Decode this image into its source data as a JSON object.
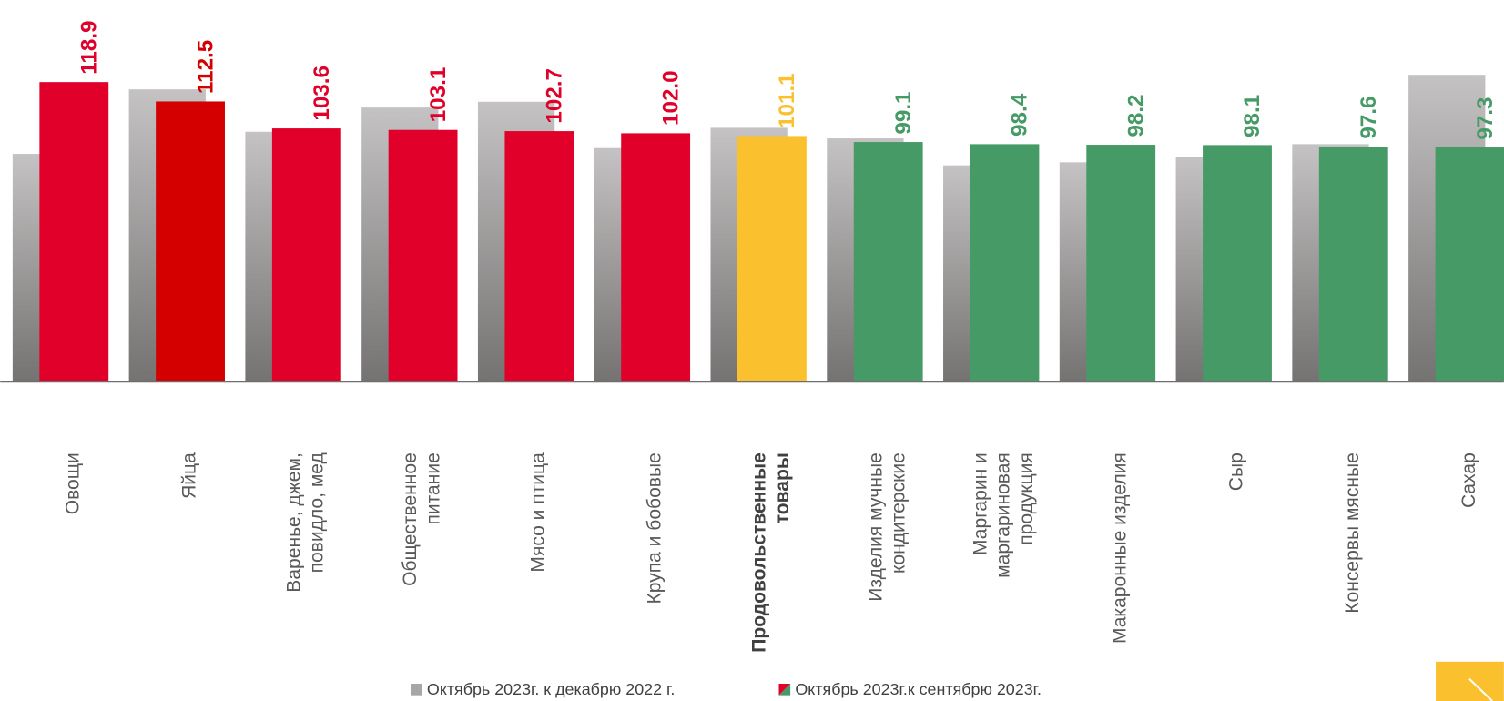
{
  "chart_data": {
    "type": "bar",
    "categories": [
      "Овощи",
      "Яйца",
      "Варенье, джем, повидло, мед",
      "Общественное питание",
      "Мясо и птица",
      "Крупа и бобовые",
      "Продовольственные товары",
      "Изделия мучные кондитерские",
      "Маргарин и маргариновая продукция",
      "Макаронные изделия",
      "Сыр",
      "Консервы мясные",
      "Сахар"
    ],
    "bold_category": 6,
    "series": [
      {
        "name": "Октябрь 2023г. к декабрю 2022 г.",
        "color": "#a6a6a6",
        "values": [
          95.2,
          116.5,
          102.5,
          110.5,
          112.4,
          97.1,
          103.8,
          100.3,
          91.4,
          92.4,
          94.3,
          98.4,
          121.3
        ]
      },
      {
        "name": "Октябрь 2023г.к сентябрю 2023г.",
        "colors": [
          "#e0002a",
          "#d40000",
          "#e0002a",
          "#e0002a",
          "#e0002a",
          "#e0002a",
          "#fbc02d",
          "#459a66",
          "#459a66",
          "#459a66",
          "#459a66",
          "#459a66",
          "#459a66"
        ],
        "values": [
          118.9,
          112.5,
          103.6,
          103.1,
          102.7,
          102.0,
          101.1,
          99.1,
          98.4,
          98.2,
          98.1,
          97.6,
          97.3
        ],
        "value_labels": [
          "118.9",
          "112.5",
          "103.6",
          "103.1",
          "102.7",
          "102.0",
          "101.1",
          "99.1",
          "98.4",
          "98.2",
          "98.1",
          "97.6",
          "97.3"
        ]
      }
    ],
    "ylim": [
      20,
      146
    ]
  }
}
